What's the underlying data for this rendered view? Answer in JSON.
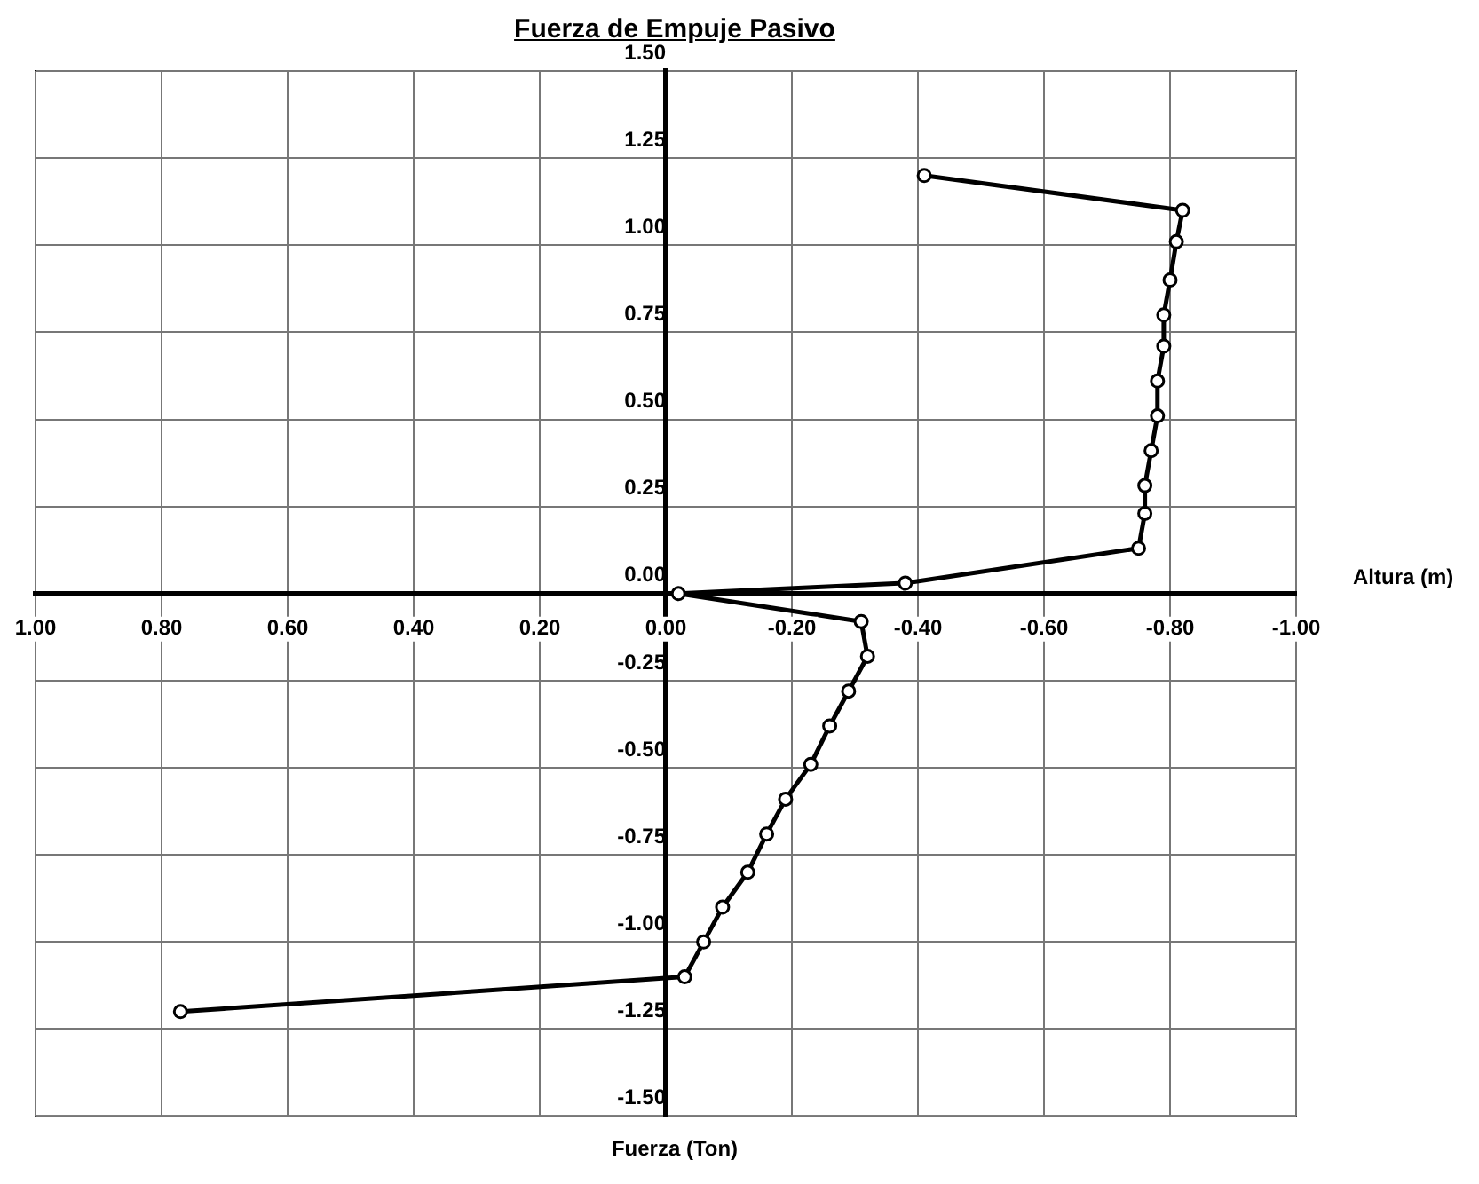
{
  "chart_data": {
    "type": "line",
    "title": "Fuerza de Empuje Pasivo",
    "xlabel": "Fuerza (Ton)",
    "ylabel": "Altura (m)",
    "series": [
      {
        "color": "#000000",
        "x": [
          -0.41,
          -0.82,
          -0.81,
          -0.8,
          -0.79,
          -0.79,
          -0.78,
          -0.78,
          -0.77,
          -0.76,
          -0.76,
          -0.75,
          -0.38,
          -0.02,
          -0.31,
          -0.32,
          -0.29,
          -0.26,
          -0.23,
          -0.19,
          -0.16,
          -0.13,
          -0.09,
          -0.06,
          -0.03,
          0.77
        ],
        "values": [
          1.2,
          1.1,
          1.01,
          0.9,
          0.8,
          0.71,
          0.61,
          0.51,
          0.41,
          0.31,
          0.23,
          0.13,
          0.03,
          0.0,
          -0.08,
          -0.18,
          -0.28,
          -0.38,
          -0.49,
          -0.59,
          -0.69,
          -0.8,
          -0.9,
          -1.0,
          -1.1,
          -1.2
        ]
      }
    ],
    "xlim": [
      1,
      -1
    ],
    "xticks": [
      {
        "value": 1,
        "label": "1.00"
      },
      {
        "value": 0.8,
        "label": "0.80"
      },
      {
        "value": 0.6,
        "label": "0.60"
      },
      {
        "value": 0.4,
        "label": "0.40"
      },
      {
        "value": 0.2,
        "label": "0.20"
      },
      {
        "value": 0,
        "label": "0.00"
      },
      {
        "value": -0.2,
        "label": "-0.20"
      },
      {
        "value": -0.4,
        "label": "-0.40"
      },
      {
        "value": -0.6,
        "label": "-0.60"
      },
      {
        "value": -0.8,
        "label": "-0.80"
      },
      {
        "value": -1,
        "label": "-1.00"
      }
    ],
    "ylim": [
      -1.5,
      1.5
    ],
    "yticks": [
      {
        "value": -1.5,
        "label": "-1.50"
      },
      {
        "value": -1.25,
        "label": "-1.25"
      },
      {
        "value": -1,
        "label": "-1.00"
      },
      {
        "value": -0.75,
        "label": "-0.75"
      },
      {
        "value": -0.5,
        "label": "-0.50"
      },
      {
        "value": -0.25,
        "label": "-0.25"
      },
      {
        "value": 0,
        "label": "0.00"
      },
      {
        "value": 0.25,
        "label": "0.25"
      },
      {
        "value": 0.5,
        "label": "0.50"
      },
      {
        "value": 0.75,
        "label": "0.75"
      },
      {
        "value": 1,
        "label": "1.00"
      },
      {
        "value": 1.25,
        "label": "1.25"
      },
      {
        "value": 1.5,
        "label": "1.50"
      }
    ],
    "grid": true,
    "legend": false,
    "marker": "circle",
    "line_style": "solid"
  }
}
